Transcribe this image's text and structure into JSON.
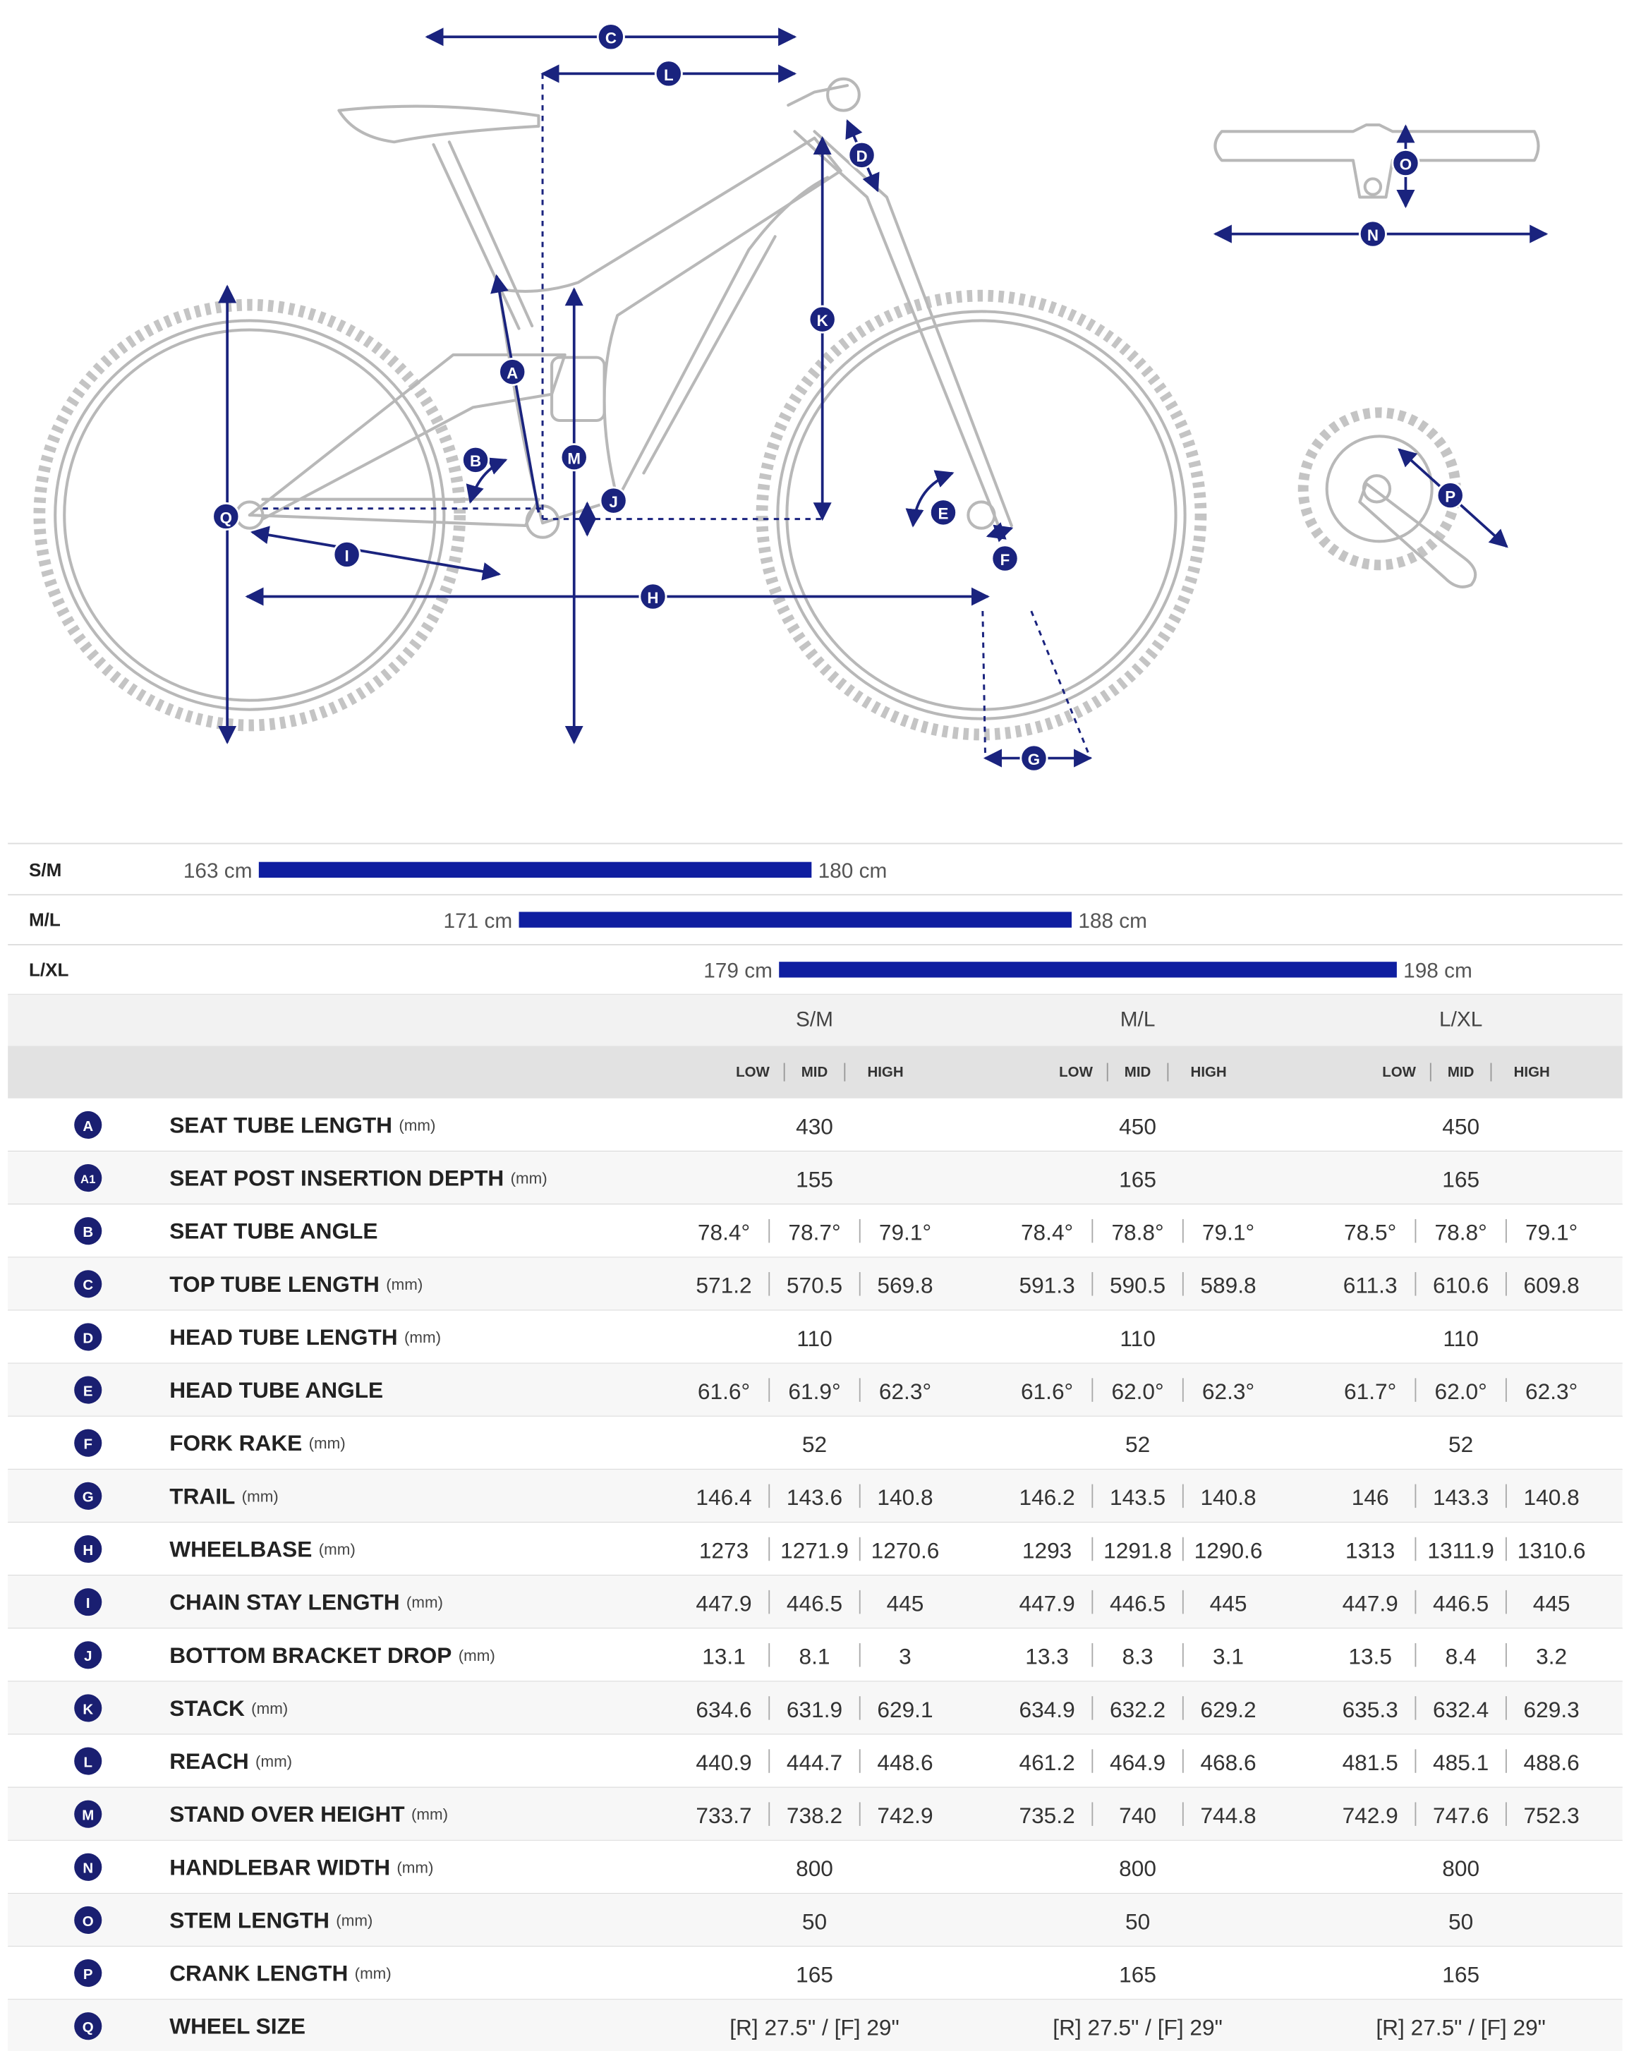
{
  "rider_height": [
    {
      "size": "S/M",
      "min": {
        "value": 163,
        "label": "163 cm"
      },
      "max": {
        "value": 180,
        "label": "180 cm"
      }
    },
    {
      "size": "M/L",
      "min": {
        "value": 171,
        "label": "171 cm"
      },
      "max": {
        "value": 188,
        "label": "188 cm"
      }
    },
    {
      "size": "L/XL",
      "min": {
        "value": 179,
        "label": "179 cm"
      },
      "max": {
        "value": 198,
        "label": "198 cm"
      }
    }
  ],
  "table": {
    "sizes": [
      "S/M",
      "M/L",
      "L/XL"
    ],
    "positions": [
      "LOW",
      "MID",
      "HIGH"
    ],
    "rows": [
      {
        "letter": "A",
        "label": "SEAT TUBE LENGTH",
        "unit": "(mm)",
        "values": [
          "430",
          "450",
          "450"
        ]
      },
      {
        "letter": "A1",
        "label": "SEAT POST INSERTION DEPTH",
        "unit": "(mm)",
        "values": [
          "155",
          "165",
          "165"
        ]
      },
      {
        "letter": "B",
        "label": "SEAT TUBE ANGLE",
        "values": [
          [
            "78.4°",
            "78.7°",
            "79.1°"
          ],
          [
            "78.4°",
            "78.8°",
            "79.1°"
          ],
          [
            "78.5°",
            "78.8°",
            "79.1°"
          ]
        ]
      },
      {
        "letter": "C",
        "label": "TOP TUBE LENGTH",
        "unit": "(mm)",
        "values": [
          [
            "571.2",
            "570.5",
            "569.8"
          ],
          [
            "591.3",
            "590.5",
            "589.8"
          ],
          [
            "611.3",
            "610.6",
            "609.8"
          ]
        ]
      },
      {
        "letter": "D",
        "label": "HEAD TUBE LENGTH",
        "unit": "(mm)",
        "values": [
          "110",
          "110",
          "110"
        ]
      },
      {
        "letter": "E",
        "label": "HEAD TUBE ANGLE",
        "values": [
          [
            "61.6°",
            "61.9°",
            "62.3°"
          ],
          [
            "61.6°",
            "62.0°",
            "62.3°"
          ],
          [
            "61.7°",
            "62.0°",
            "62.3°"
          ]
        ]
      },
      {
        "letter": "F",
        "label": "FORK RAKE",
        "unit": "(mm)",
        "values": [
          "52",
          "52",
          "52"
        ]
      },
      {
        "letter": "G",
        "label": "TRAIL",
        "unit": "(mm)",
        "values": [
          [
            "146.4",
            "143.6",
            "140.8"
          ],
          [
            "146.2",
            "143.5",
            "140.8"
          ],
          [
            "146",
            "143.3",
            "140.8"
          ]
        ]
      },
      {
        "letter": "H",
        "label": "WHEELBASE",
        "unit": "(mm)",
        "values": [
          [
            "1273",
            "1271.9",
            "1270.6"
          ],
          [
            "1293",
            "1291.8",
            "1290.6"
          ],
          [
            "1313",
            "1311.9",
            "1310.6"
          ]
        ]
      },
      {
        "letter": "I",
        "label": "CHAIN STAY LENGTH",
        "unit": "(mm)",
        "values": [
          [
            "447.9",
            "446.5",
            "445"
          ],
          [
            "447.9",
            "446.5",
            "445"
          ],
          [
            "447.9",
            "446.5",
            "445"
          ]
        ]
      },
      {
        "letter": "J",
        "label": "BOTTOM BRACKET DROP",
        "unit": "(mm)",
        "values": [
          [
            "13.1",
            "8.1",
            "3"
          ],
          [
            "13.3",
            "8.3",
            "3.1"
          ],
          [
            "13.5",
            "8.4",
            "3.2"
          ]
        ]
      },
      {
        "letter": "K",
        "label": "STACK",
        "unit": "(mm)",
        "values": [
          [
            "634.6",
            "631.9",
            "629.1"
          ],
          [
            "634.9",
            "632.2",
            "629.2"
          ],
          [
            "635.3",
            "632.4",
            "629.3"
          ]
        ]
      },
      {
        "letter": "L",
        "label": "REACH",
        "unit": "(mm)",
        "values": [
          [
            "440.9",
            "444.7",
            "448.6"
          ],
          [
            "461.2",
            "464.9",
            "468.6"
          ],
          [
            "481.5",
            "485.1",
            "488.6"
          ]
        ]
      },
      {
        "letter": "M",
        "label": "STAND OVER HEIGHT",
        "unit": "(mm)",
        "values": [
          [
            "733.7",
            "738.2",
            "742.9"
          ],
          [
            "735.2",
            "740",
            "744.8"
          ],
          [
            "742.9",
            "747.6",
            "752.3"
          ]
        ]
      },
      {
        "letter": "N",
        "label": "HANDLEBAR WIDTH",
        "unit": "(mm)",
        "values": [
          "800",
          "800",
          "800"
        ]
      },
      {
        "letter": "O",
        "label": "STEM LENGTH",
        "unit": "(mm)",
        "values": [
          "50",
          "50",
          "50"
        ]
      },
      {
        "letter": "P",
        "label": "CRANK LENGTH",
        "unit": "(mm)",
        "values": [
          "165",
          "165",
          "165"
        ]
      },
      {
        "letter": "Q",
        "label": "WHEEL SIZE",
        "values": [
          "[R] 27.5\" / [F] 29\"",
          "[R] 27.5\" / [F] 29\"",
          "[R] 27.5\" / [F] 29\""
        ]
      }
    ]
  }
}
